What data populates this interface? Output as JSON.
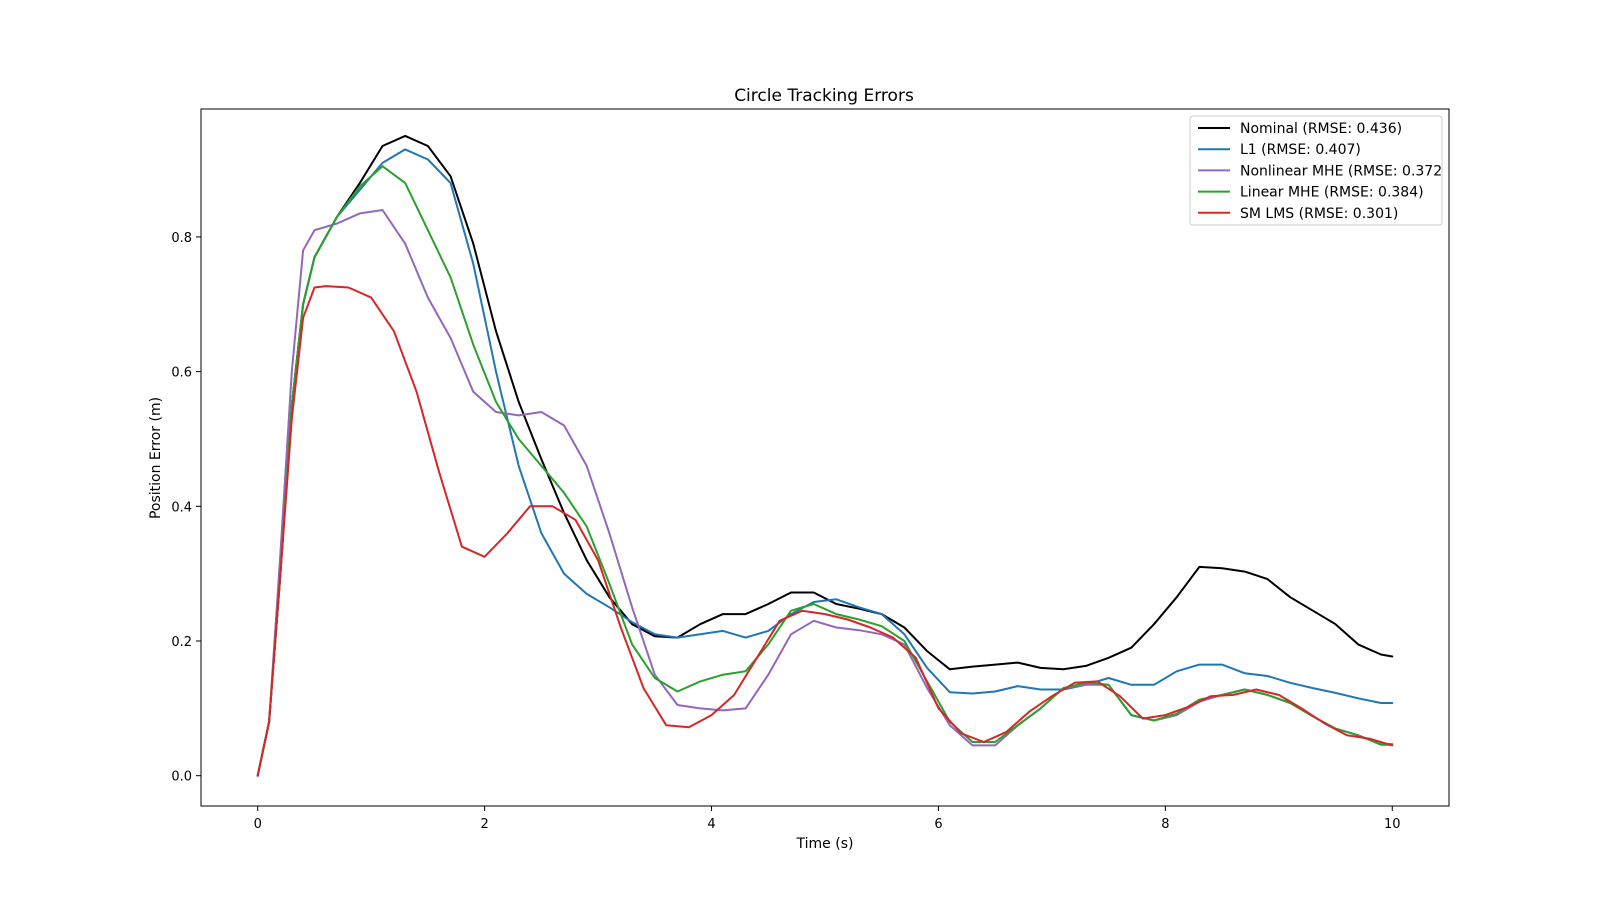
{
  "chart_data": {
    "type": "line",
    "title": "Circle Tracking Errors",
    "xlabel": "Time (s)",
    "ylabel": "Position Error (m)",
    "xlim": [
      -0.5,
      10.5
    ],
    "ylim": [
      -0.045,
      0.99
    ],
    "xticks": [
      0,
      2,
      4,
      6,
      8,
      10
    ],
    "xtick_labels": [
      "0",
      "2",
      "4",
      "6",
      "8",
      "10"
    ],
    "yticks": [
      0.0,
      0.2,
      0.4,
      0.6,
      0.8
    ],
    "ytick_labels": [
      "0.0",
      "0.2",
      "0.4",
      "0.6",
      "0.8"
    ],
    "grid": false,
    "legend_position": "top-right",
    "series": [
      {
        "name": "Nominal (RMSE: 0.436)",
        "color": "#000000",
        "x": [
          0,
          0.1,
          0.2,
          0.3,
          0.4,
          0.5,
          0.7,
          0.9,
          1.1,
          1.3,
          1.5,
          1.7,
          1.9,
          2.1,
          2.3,
          2.5,
          2.7,
          2.9,
          3.1,
          3.3,
          3.5,
          3.7,
          3.9,
          4.1,
          4.3,
          4.5,
          4.7,
          4.9,
          5.1,
          5.3,
          5.5,
          5.7,
          5.9,
          6.1,
          6.3,
          6.5,
          6.7,
          6.9,
          7.1,
          7.3,
          7.5,
          7.7,
          7.9,
          8.1,
          8.3,
          8.5,
          8.7,
          8.9,
          9.1,
          9.3,
          9.5,
          9.7,
          9.9,
          10.0
        ],
        "y": [
          0.0,
          0.08,
          0.3,
          0.55,
          0.7,
          0.77,
          0.83,
          0.88,
          0.935,
          0.95,
          0.935,
          0.89,
          0.79,
          0.66,
          0.555,
          0.47,
          0.39,
          0.32,
          0.265,
          0.225,
          0.207,
          0.205,
          0.225,
          0.24,
          0.24,
          0.255,
          0.272,
          0.272,
          0.255,
          0.248,
          0.24,
          0.22,
          0.185,
          0.158,
          0.162,
          0.165,
          0.168,
          0.16,
          0.158,
          0.163,
          0.175,
          0.19,
          0.225,
          0.265,
          0.31,
          0.308,
          0.303,
          0.292,
          0.265,
          0.245,
          0.225,
          0.195,
          0.18,
          0.177
        ]
      },
      {
        "name": "L1 (RMSE: 0.407)",
        "color": "#1f77b4",
        "x": [
          0,
          0.1,
          0.2,
          0.3,
          0.4,
          0.5,
          0.7,
          0.9,
          1.1,
          1.3,
          1.5,
          1.7,
          1.9,
          2.1,
          2.3,
          2.5,
          2.7,
          2.9,
          3.1,
          3.3,
          3.5,
          3.7,
          3.9,
          4.1,
          4.3,
          4.5,
          4.7,
          4.9,
          5.1,
          5.3,
          5.5,
          5.7,
          5.9,
          6.1,
          6.3,
          6.5,
          6.7,
          6.9,
          7.1,
          7.3,
          7.5,
          7.7,
          7.9,
          8.1,
          8.3,
          8.5,
          8.7,
          8.9,
          9.1,
          9.3,
          9.5,
          9.7,
          9.9,
          10.0
        ],
        "y": [
          0.0,
          0.08,
          0.3,
          0.55,
          0.7,
          0.77,
          0.83,
          0.87,
          0.91,
          0.93,
          0.915,
          0.88,
          0.76,
          0.6,
          0.46,
          0.36,
          0.3,
          0.27,
          0.25,
          0.228,
          0.21,
          0.205,
          0.21,
          0.215,
          0.205,
          0.215,
          0.24,
          0.258,
          0.262,
          0.25,
          0.24,
          0.21,
          0.16,
          0.124,
          0.122,
          0.125,
          0.133,
          0.128,
          0.128,
          0.135,
          0.145,
          0.135,
          0.135,
          0.155,
          0.165,
          0.165,
          0.152,
          0.148,
          0.138,
          0.13,
          0.123,
          0.115,
          0.108,
          0.108
        ]
      },
      {
        "name": "Nonlinear MHE (RMSE: 0.372",
        "color": "#9467bd",
        "x": [
          0,
          0.1,
          0.2,
          0.3,
          0.4,
          0.5,
          0.7,
          0.9,
          1.1,
          1.3,
          1.5,
          1.7,
          1.9,
          2.1,
          2.3,
          2.5,
          2.7,
          2.9,
          3.1,
          3.3,
          3.5,
          3.7,
          3.9,
          4.1,
          4.3,
          4.5,
          4.7,
          4.9,
          5.1,
          5.3,
          5.5,
          5.7,
          5.9,
          6.1,
          6.3,
          6.5,
          6.7,
          6.9,
          7.1,
          7.3,
          7.5,
          7.7,
          7.9,
          8.1,
          8.3,
          8.5,
          8.7,
          8.9,
          9.1,
          9.3,
          9.5,
          9.7,
          9.9,
          10.0
        ],
        "y": [
          0.0,
          0.08,
          0.33,
          0.6,
          0.78,
          0.81,
          0.82,
          0.835,
          0.84,
          0.79,
          0.71,
          0.65,
          0.57,
          0.54,
          0.535,
          0.54,
          0.52,
          0.46,
          0.36,
          0.25,
          0.15,
          0.105,
          0.1,
          0.097,
          0.1,
          0.15,
          0.21,
          0.23,
          0.22,
          0.216,
          0.21,
          0.195,
          0.13,
          0.075,
          0.045,
          0.045,
          0.075,
          0.1,
          0.13,
          0.135,
          0.135,
          0.09,
          0.082,
          0.09,
          0.11,
          0.12,
          0.128,
          0.12,
          0.108,
          0.088,
          0.07,
          0.06,
          0.047,
          0.047
        ]
      },
      {
        "name": "Linear MHE (RMSE: 0.384)",
        "color": "#2ca02c",
        "x": [
          0,
          0.1,
          0.2,
          0.3,
          0.4,
          0.5,
          0.7,
          0.9,
          1.1,
          1.3,
          1.5,
          1.7,
          1.9,
          2.1,
          2.3,
          2.5,
          2.7,
          2.9,
          3.1,
          3.3,
          3.5,
          3.7,
          3.9,
          4.1,
          4.3,
          4.5,
          4.7,
          4.9,
          5.1,
          5.3,
          5.5,
          5.7,
          5.9,
          6.1,
          6.3,
          6.5,
          6.7,
          6.9,
          7.1,
          7.3,
          7.5,
          7.7,
          7.9,
          8.1,
          8.3,
          8.5,
          8.7,
          8.9,
          9.1,
          9.3,
          9.5,
          9.7,
          9.9,
          10.0
        ],
        "y": [
          0.0,
          0.08,
          0.3,
          0.55,
          0.7,
          0.77,
          0.83,
          0.875,
          0.905,
          0.88,
          0.81,
          0.74,
          0.64,
          0.555,
          0.5,
          0.46,
          0.42,
          0.37,
          0.285,
          0.195,
          0.145,
          0.125,
          0.14,
          0.15,
          0.155,
          0.195,
          0.245,
          0.255,
          0.24,
          0.232,
          0.222,
          0.2,
          0.14,
          0.08,
          0.05,
          0.05,
          0.075,
          0.1,
          0.13,
          0.138,
          0.135,
          0.09,
          0.082,
          0.092,
          0.113,
          0.12,
          0.128,
          0.12,
          0.108,
          0.088,
          0.07,
          0.06,
          0.046,
          0.046
        ]
      },
      {
        "name": "SM LMS (RMSE: 0.301)",
        "color": "#d62728",
        "x": [
          0,
          0.1,
          0.2,
          0.3,
          0.4,
          0.5,
          0.6,
          0.8,
          1.0,
          1.2,
          1.4,
          1.6,
          1.8,
          2.0,
          2.2,
          2.4,
          2.6,
          2.8,
          3.0,
          3.2,
          3.4,
          3.6,
          3.8,
          4.0,
          4.2,
          4.4,
          4.6,
          4.8,
          5.0,
          5.2,
          5.4,
          5.6,
          5.8,
          6.0,
          6.2,
          6.4,
          6.6,
          6.8,
          7.0,
          7.2,
          7.4,
          7.6,
          7.8,
          8.0,
          8.2,
          8.4,
          8.6,
          8.8,
          9.0,
          9.2,
          9.4,
          9.6,
          9.8,
          10.0
        ],
        "y": [
          0.0,
          0.08,
          0.3,
          0.53,
          0.68,
          0.725,
          0.727,
          0.725,
          0.71,
          0.66,
          0.57,
          0.45,
          0.34,
          0.325,
          0.36,
          0.4,
          0.4,
          0.38,
          0.32,
          0.22,
          0.13,
          0.075,
          0.072,
          0.09,
          0.12,
          0.175,
          0.23,
          0.245,
          0.24,
          0.232,
          0.22,
          0.205,
          0.175,
          0.1,
          0.063,
          0.05,
          0.065,
          0.095,
          0.118,
          0.138,
          0.14,
          0.118,
          0.085,
          0.09,
          0.102,
          0.118,
          0.12,
          0.128,
          0.12,
          0.1,
          0.078,
          0.06,
          0.055,
          0.045
        ]
      }
    ]
  }
}
